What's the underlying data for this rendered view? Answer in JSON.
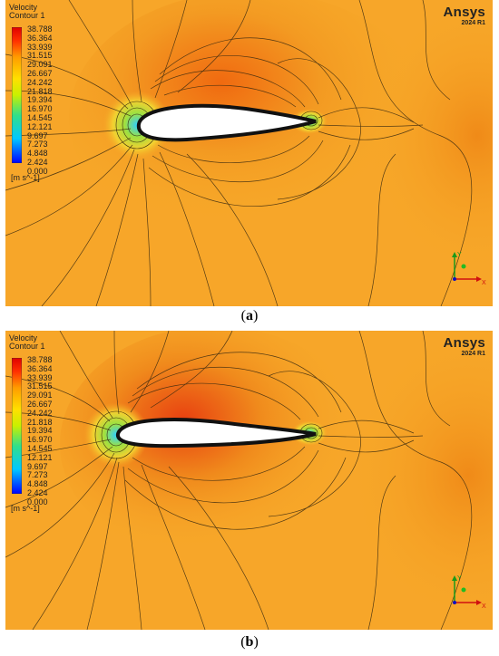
{
  "legend": {
    "title_line1": "Velocity",
    "title_line2": "Contour 1",
    "ticks": [
      "38.788",
      "36.364",
      "33.939",
      "31.515",
      "29.091",
      "26.667",
      "24.242",
      "21.818",
      "19.394",
      "16.970",
      "14.545",
      "12.121",
      "9.697",
      "7.273",
      "4.848",
      "2.424",
      "0.000"
    ],
    "unit": "[m s^-1]",
    "colors": [
      "#0000ff",
      "#00c8ff",
      "#30e08a",
      "#c8f000",
      "#ffe000",
      "#ff9c00",
      "#ff3000",
      "#e00000"
    ]
  },
  "logo": {
    "name": "Ansys",
    "version": "2024 R1"
  },
  "axes": {
    "x": "X",
    "y": "Y"
  },
  "captions": {
    "a": {
      "open": "(",
      "label": "a",
      "close": ")"
    },
    "b": {
      "open": "(",
      "label": "b",
      "close": ")"
    }
  }
}
